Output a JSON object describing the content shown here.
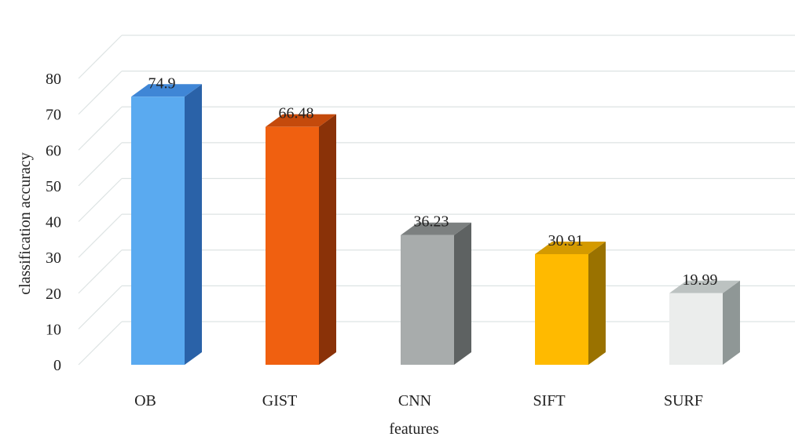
{
  "chart_data": {
    "type": "bar",
    "categories": [
      "OB",
      "GIST",
      "CNN",
      "SIFT",
      "SURF"
    ],
    "values": [
      74.9,
      66.48,
      36.23,
      30.91,
      19.99
    ],
    "value_labels": [
      "74.9",
      "66.48",
      "36.23",
      "30.91",
      "19.99"
    ],
    "xlabel": "features",
    "ylabel": "classification accuracy",
    "ylim": [
      0,
      80
    ],
    "yticks": [
      0,
      10,
      20,
      30,
      40,
      50,
      60,
      70,
      80
    ],
    "grid": true,
    "legend": "none",
    "colors": [
      {
        "front": "#5aaaf0",
        "side": "#2a62a8",
        "top": "#3f86d6"
      },
      {
        "front": "#f06010",
        "side": "#8a3208",
        "top": "#c44a0c"
      },
      {
        "front": "#a8acac",
        "side": "#5e6262",
        "top": "#7c8080"
      },
      {
        "front": "#ffba00",
        "side": "#9a7200",
        "top": "#d49a00"
      },
      {
        "front": "#ebedec",
        "side": "#8f9796",
        "top": "#bcc2c1"
      }
    ]
  }
}
